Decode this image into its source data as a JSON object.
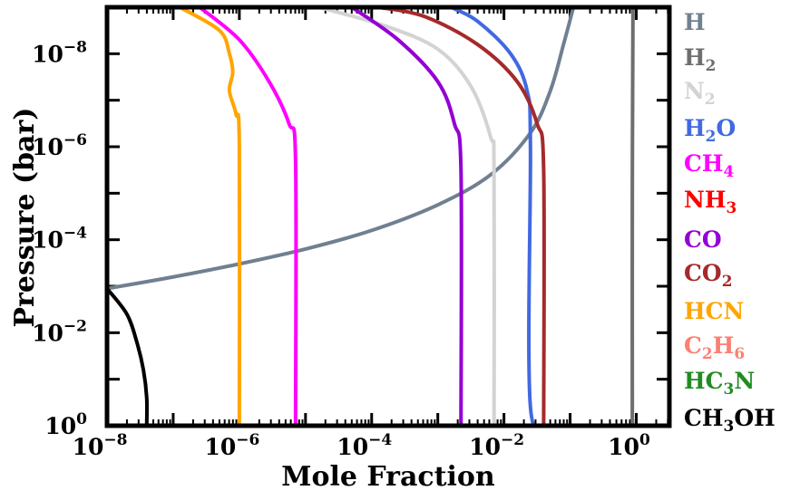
{
  "chart_data": {
    "type": "line",
    "title": "",
    "xlabel": "Mole Fraction",
    "ylabel": "Pressure (bar)",
    "xscale": "log",
    "yscale": "log",
    "xlim_log10": [
      -8,
      0.5
    ],
    "ylim_log10": [
      0,
      -9
    ],
    "y_inverted": true,
    "x_ticks": [
      {
        "exp": -8,
        "base": "10",
        "sup": "−8"
      },
      {
        "exp": -6,
        "base": "10",
        "sup": "−6"
      },
      {
        "exp": -4,
        "base": "10",
        "sup": "−4"
      },
      {
        "exp": -2,
        "base": "10",
        "sup": "−2"
      },
      {
        "exp": 0,
        "base": "10",
        "sup": "0"
      }
    ],
    "y_ticks": [
      {
        "exp": -8,
        "base": "10",
        "sup": "−8"
      },
      {
        "exp": -6,
        "base": "10",
        "sup": "−6"
      },
      {
        "exp": -4,
        "base": "10",
        "sup": "−4"
      },
      {
        "exp": -2,
        "base": "10",
        "sup": "−2"
      },
      {
        "exp": 0,
        "base": "10",
        "sup": "0"
      }
    ],
    "legend_position": "outside-right",
    "series": [
      {
        "name": "H",
        "legend": [
          {
            "t": "H"
          }
        ],
        "color": "#708090",
        "points_log10": [
          [
            -8,
            -2.95
          ],
          [
            -7.0,
            -3.2
          ],
          [
            -6.0,
            -3.48
          ],
          [
            -5.0,
            -3.8
          ],
          [
            -4.0,
            -4.2
          ],
          [
            -3.0,
            -4.75
          ],
          [
            -2.2,
            -5.4
          ],
          [
            -1.6,
            -6.3
          ],
          [
            -1.3,
            -7.2
          ],
          [
            -1.1,
            -8.2
          ],
          [
            -0.95,
            -9
          ]
        ]
      },
      {
        "name": "H2",
        "legend": [
          {
            "t": "H"
          },
          {
            "t": "2",
            "sub": true
          }
        ],
        "color": "#6e6e6e",
        "points_log10": [
          [
            -0.06,
            0
          ],
          [
            -0.06,
            -5
          ],
          [
            -0.05,
            -9
          ]
        ]
      },
      {
        "name": "N2",
        "legend": [
          {
            "t": "N"
          },
          {
            "t": "2",
            "sub": true
          }
        ],
        "color": "#d3d3d3",
        "points_log10": [
          [
            -2.15,
            0
          ],
          [
            -2.15,
            -5.5
          ],
          [
            -2.2,
            -6.2
          ],
          [
            -2.5,
            -7.3
          ],
          [
            -3.0,
            -8.1
          ],
          [
            -3.8,
            -8.6
          ],
          [
            -4.8,
            -9
          ]
        ]
      },
      {
        "name": "H2O",
        "legend": [
          {
            "t": "H"
          },
          {
            "t": "2",
            "sub": true
          },
          {
            "t": "O"
          }
        ],
        "color": "#4169e1",
        "points_log10": [
          [
            -1.25,
            0
          ],
          [
            -1.6,
            -0.4
          ],
          [
            -1.6,
            -6.0
          ],
          [
            -1.65,
            -7.2
          ],
          [
            -1.9,
            -8.0
          ],
          [
            -2.4,
            -8.7
          ],
          [
            -2.8,
            -9
          ]
        ]
      },
      {
        "name": "CH4",
        "legend": [
          {
            "t": "CH"
          },
          {
            "t": "4",
            "sub": true
          }
        ],
        "color": "#ff00ff",
        "points_log10": [
          [
            -5.15,
            0
          ],
          [
            -5.15,
            -5.7
          ],
          [
            -5.25,
            -6.5
          ],
          [
            -5.55,
            -7.4
          ],
          [
            -6.0,
            -8.3
          ],
          [
            -6.6,
            -9
          ]
        ]
      },
      {
        "name": "NH3",
        "legend": [
          {
            "t": "NH"
          },
          {
            "t": "3",
            "sub": true
          }
        ],
        "color": "#ff0000",
        "points_log10": []
      },
      {
        "name": "CO",
        "legend": [
          {
            "t": "CO"
          }
        ],
        "color": "#9400d3",
        "points_log10": [
          [
            -2.65,
            0
          ],
          [
            -2.65,
            -5.5
          ],
          [
            -2.75,
            -6.5
          ],
          [
            -3.0,
            -7.4
          ],
          [
            -3.6,
            -8.3
          ],
          [
            -4.3,
            -9
          ]
        ]
      },
      {
        "name": "CO2",
        "legend": [
          {
            "t": "CO"
          },
          {
            "t": "2",
            "sub": true
          }
        ],
        "color": "#a52a2a",
        "points_log10": [
          [
            -1.4,
            0
          ],
          [
            -1.4,
            -5.5
          ],
          [
            -1.5,
            -6.5
          ],
          [
            -1.8,
            -7.4
          ],
          [
            -2.4,
            -8.2
          ],
          [
            -3.2,
            -8.8
          ],
          [
            -3.9,
            -9
          ]
        ]
      },
      {
        "name": "HCN",
        "legend": [
          {
            "t": "HCN"
          }
        ],
        "color": "#ffa500",
        "points_log10": [
          [
            -6.0,
            0
          ],
          [
            -6.0,
            -6.0
          ],
          [
            -6.05,
            -6.7
          ],
          [
            -6.15,
            -7.2
          ],
          [
            -6.1,
            -7.6
          ],
          [
            -6.15,
            -8.0
          ],
          [
            -6.3,
            -8.5
          ],
          [
            -6.9,
            -9
          ]
        ]
      },
      {
        "name": "C2H6",
        "legend": [
          {
            "t": "C"
          },
          {
            "t": "2",
            "sub": true
          },
          {
            "t": "H"
          },
          {
            "t": "6",
            "sub": true
          }
        ],
        "color": "#fa8072",
        "points_log10": []
      },
      {
        "name": "HC3N",
        "legend": [
          {
            "t": "HC"
          },
          {
            "t": "3",
            "sub": true
          },
          {
            "t": "N"
          }
        ],
        "color": "#228b22",
        "points_log10": []
      },
      {
        "name": "CH3OH",
        "legend": [
          {
            "t": "CH"
          },
          {
            "t": "3",
            "sub": true
          },
          {
            "t": "OH"
          }
        ],
        "color": "#000000",
        "points_log10": [
          [
            -7.4,
            0
          ],
          [
            -7.4,
            -0.6
          ],
          [
            -7.45,
            -1.2
          ],
          [
            -7.55,
            -1.8
          ],
          [
            -7.7,
            -2.4
          ],
          [
            -8.0,
            -2.95
          ]
        ]
      }
    ]
  }
}
